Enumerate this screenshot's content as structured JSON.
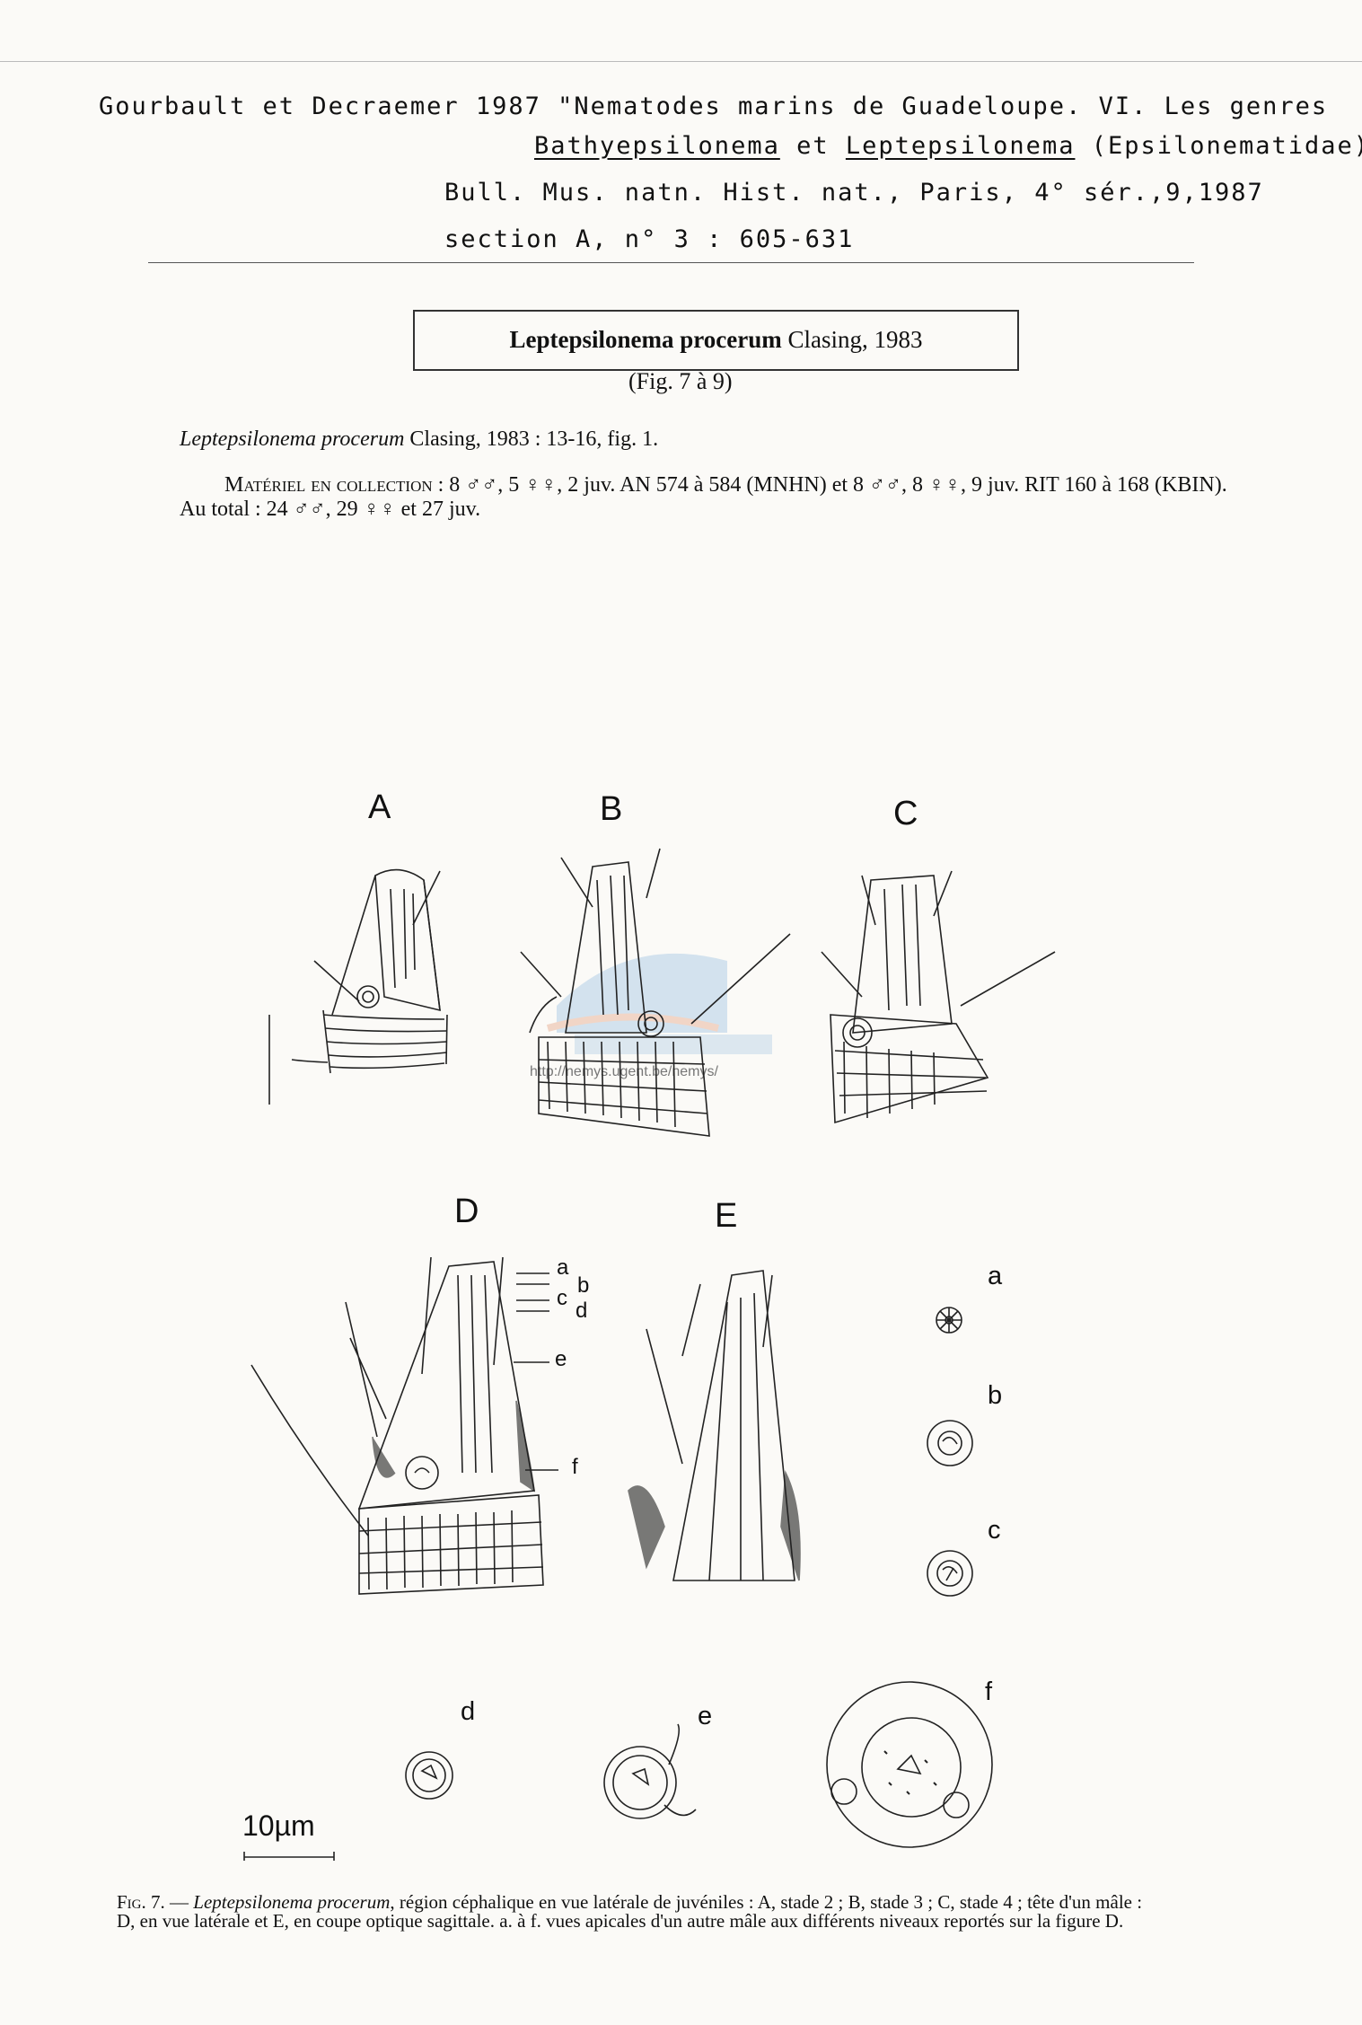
{
  "header": {
    "line1": "Gourbault et Decraemer 1987 \"Nematodes marins de Guadeloupe.  VI. Les genres",
    "line2_genus1": "Bathyepsilonema",
    "line2_et": " et ",
    "line2_genus2": "Leptepsilonema",
    "line2_family": " (Epsilonematidae)",
    "line3": "Bull. Mus. natn. Hist. nat., Paris, 4° sér.,9,1987",
    "line4": "section A, n° 3 : 605-631"
  },
  "species_box": {
    "name": "Leptepsilonema procerum",
    "authority": " Clasing, 1983",
    "fig_ref": "(Fig. 7 à 9)"
  },
  "citation": {
    "name": "Leptepsilonema procerum",
    "rest": " Clasing, 1983 : 13-16, fig. 1."
  },
  "material": {
    "label": "Matériel en collection",
    "text": " : 8 ♂♂, 5 ♀♀, 2 juv. AN 574 à 584 (MNHN) et 8 ♂♂, 8 ♀♀, 9 juv. RIT 160 à 168 (KBIN). Au total : 24 ♂♂, 29 ♀♀ et 27 juv."
  },
  "figure": {
    "panel_labels": [
      "A",
      "B",
      "C",
      "D",
      "E"
    ],
    "level_labels": [
      "a",
      "b",
      "c",
      "d",
      "e",
      "f"
    ],
    "apical_labels": [
      "a",
      "b",
      "c",
      "d",
      "e",
      "f"
    ],
    "scale_bar": "10µm",
    "watermark": "http://nemys.ugent.be/nemys/"
  },
  "caption": {
    "fig_label": "Fig. 7.",
    "dash": " — ",
    "species": "Leptepsilonema procerum",
    "text": ", région céphalique en vue latérale de juvéniles : A, stade 2 ; B, stade 3 ; C, stade 4 ; tête d'un mâle : D, en vue latérale et E, en coupe optique sagittale. a. à f. vues apicales d'un autre mâle aux différents niveaux reportés sur la figure D."
  }
}
